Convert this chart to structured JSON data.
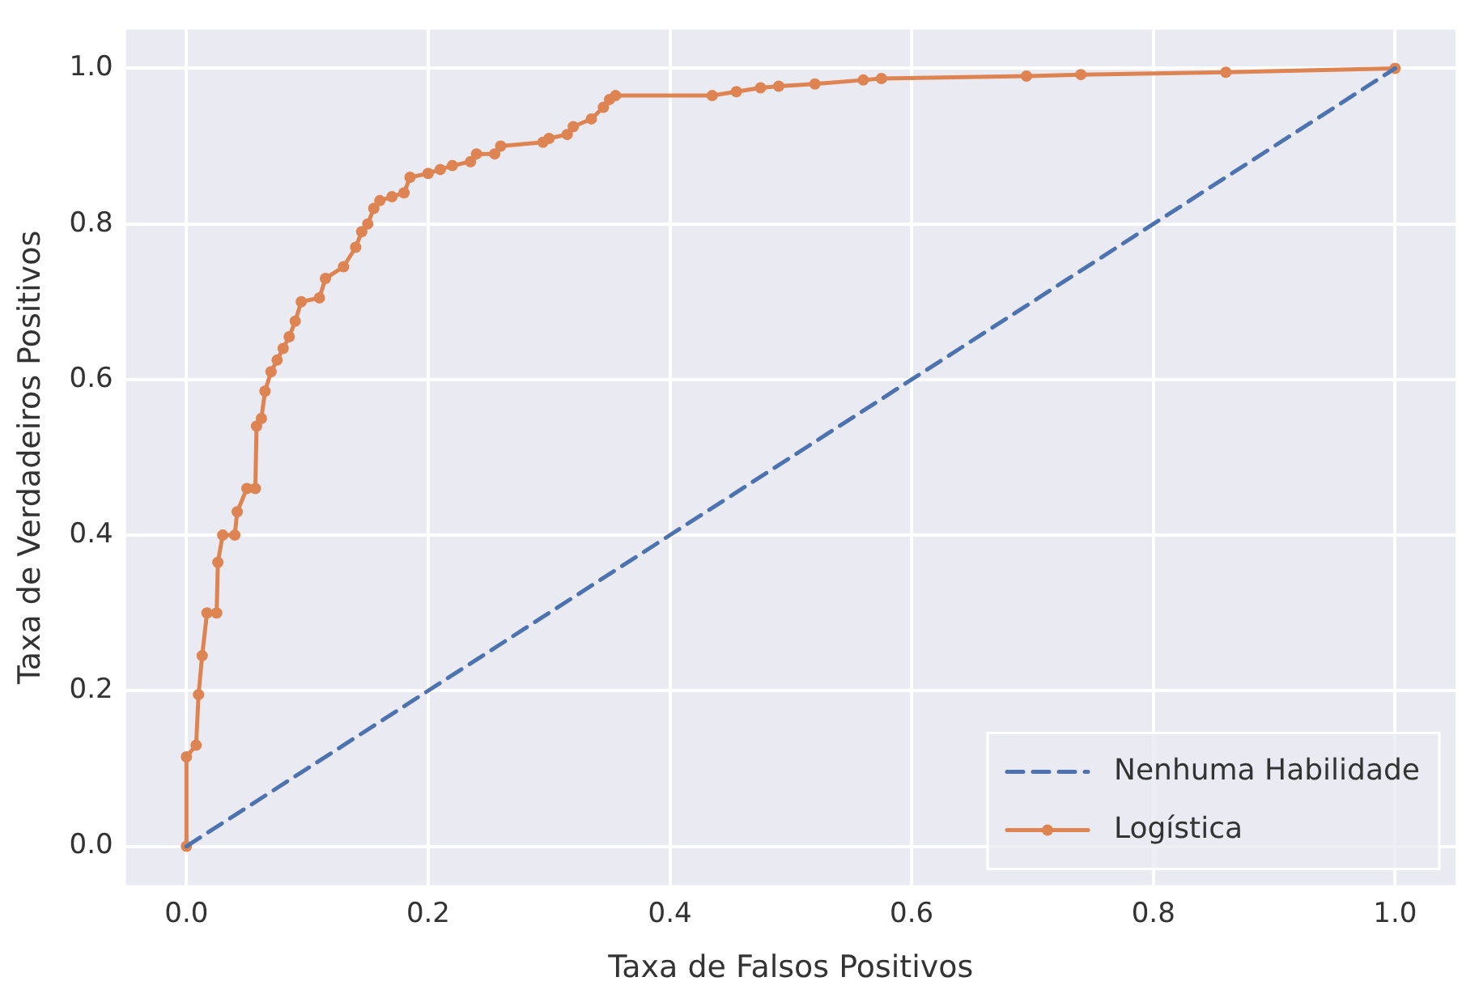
{
  "chart_data": {
    "type": "line",
    "xlabel": "Taxa de Falsos Positivos",
    "ylabel": "Taxa de Verdadeiros Positivos",
    "xlim": [
      -0.05,
      1.05
    ],
    "ylim": [
      -0.05,
      1.05
    ],
    "xticks": [
      {
        "value": 0,
        "label": "0.0"
      },
      0.2,
      0.4,
      0.6,
      0.8,
      {
        "value": 1,
        "label": "1.0"
      }
    ],
    "yticks": [
      {
        "value": 0,
        "label": "0.0"
      },
      0.2,
      0.4,
      0.6,
      0.8,
      {
        "value": 1,
        "label": "1.0"
      }
    ],
    "grid": true,
    "legend": "bottom right",
    "series": [
      {
        "name": "Nenhuma Habilidade",
        "color": "#4c72b0",
        "line_style": "dashed",
        "marker": "none",
        "x": [
          0,
          1
        ],
        "values": [
          0,
          1
        ]
      },
      {
        "name": "Logística",
        "color": "#dd8452",
        "line_style": "solid",
        "marker": "circle",
        "x": [
          0,
          0,
          0.008,
          0.01,
          0.013,
          0.017,
          0.025,
          0.026,
          0.03,
          0.04,
          0.042,
          0.05,
          0.057,
          0.058,
          0.062,
          0.065,
          0.07,
          0.075,
          0.08,
          0.085,
          0.09,
          0.095,
          0.11,
          0.115,
          0.13,
          0.14,
          0.145,
          0.15,
          0.155,
          0.16,
          0.17,
          0.18,
          0.185,
          0.2,
          0.21,
          0.22,
          0.235,
          0.24,
          0.255,
          0.26,
          0.295,
          0.3,
          0.315,
          0.32,
          0.335,
          0.345,
          0.35,
          0.355,
          0.435,
          0.455,
          0.475,
          0.49,
          0.52,
          0.56,
          0.575,
          0.695,
          0.74,
          0.86,
          1
        ],
        "values": [
          0,
          0.115,
          0.13,
          0.195,
          0.245,
          0.3,
          0.3,
          0.365,
          0.4,
          0.4,
          0.43,
          0.46,
          0.46,
          0.54,
          0.55,
          0.585,
          0.61,
          0.625,
          0.64,
          0.655,
          0.675,
          0.7,
          0.705,
          0.73,
          0.745,
          0.77,
          0.79,
          0.8,
          0.82,
          0.83,
          0.835,
          0.84,
          0.86,
          0.865,
          0.87,
          0.875,
          0.88,
          0.89,
          0.89,
          0.9,
          0.905,
          0.91,
          0.915,
          0.925,
          0.935,
          0.95,
          0.96,
          0.965,
          0.965,
          0.97,
          0.975,
          0.977,
          0.98,
          0.985,
          0.987,
          0.99,
          0.992,
          0.995,
          1
        ]
      }
    ]
  }
}
